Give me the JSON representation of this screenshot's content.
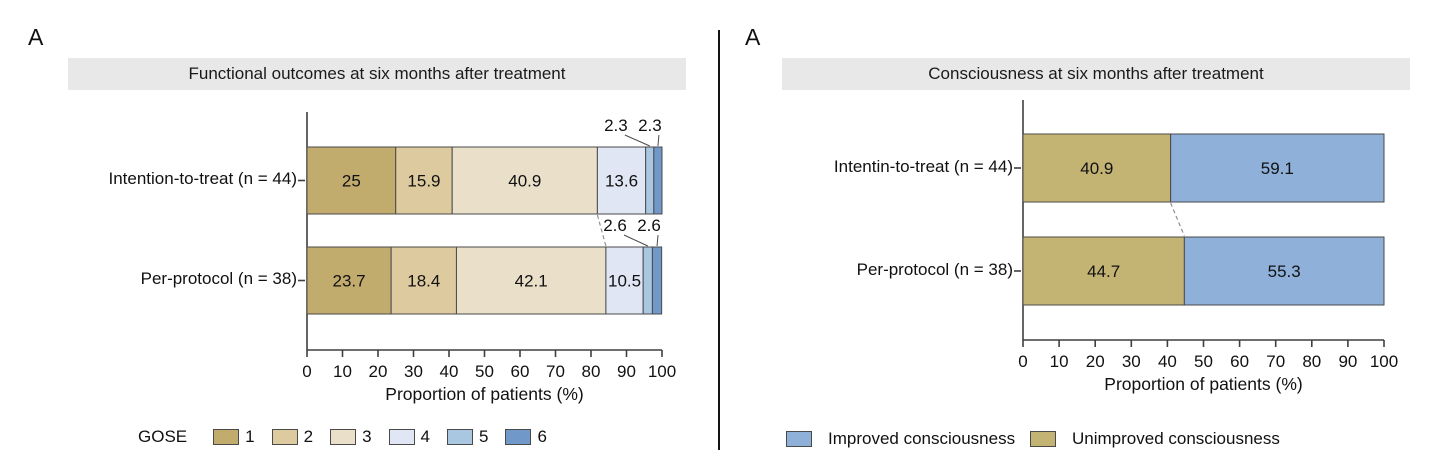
{
  "chart_data": [
    {
      "type": "stacked_bar_horizontal",
      "panel_label": "A",
      "title": "Functional outcomes at six months after treatment",
      "xlabel": "Proportion of patients (%)",
      "xlim": [
        0,
        100
      ],
      "x_ticks": [
        0,
        10,
        20,
        30,
        40,
        50,
        60,
        70,
        80,
        90,
        100
      ],
      "grid": false,
      "categories": [
        "Intention-to-treat (n = 44)",
        "Per-protocol (n = 38)"
      ],
      "series": [
        {
          "name": "GOSE 1",
          "color": "#c2ac6d",
          "values": [
            25,
            23.7
          ]
        },
        {
          "name": "GOSE 2",
          "color": "#ddcb9f",
          "values": [
            15.9,
            18.4
          ]
        },
        {
          "name": "GOSE 3",
          "color": "#eae0c9",
          "values": [
            40.9,
            42.1
          ]
        },
        {
          "name": "GOSE 4",
          "color": "#e0e6f4",
          "values": [
            13.6,
            10.5
          ]
        },
        {
          "name": "GOSE 5",
          "color": "#aac7e2",
          "values": [
            2.3,
            2.6
          ]
        },
        {
          "name": "GOSE 6",
          "color": "#7099c9",
          "values": [
            2.3,
            2.6
          ]
        }
      ],
      "bar_value_labels": [
        [
          "25",
          "15.9",
          "40.9",
          "13.6",
          "2.3",
          "2.3"
        ],
        [
          "23.7",
          "18.4",
          "42.1",
          "10.5",
          "2.6",
          "2.6"
        ]
      ],
      "small_label_threshold": 5,
      "connector_after_series": 3,
      "legend": {
        "title": "GOSE",
        "position": "bottom",
        "items": [
          {
            "label": "1",
            "color": "#c2ac6d"
          },
          {
            "label": "2",
            "color": "#ddcb9f"
          },
          {
            "label": "3",
            "color": "#eae0c9"
          },
          {
            "label": "4",
            "color": "#e0e6f4"
          },
          {
            "label": "5",
            "color": "#aac7e2"
          },
          {
            "label": "6",
            "color": "#7099c9"
          }
        ]
      }
    },
    {
      "type": "stacked_bar_horizontal",
      "panel_label": "A",
      "title": "Consciousness at six months after treatment",
      "xlabel": "Proportion of patients (%)",
      "xlim": [
        0,
        100
      ],
      "x_ticks": [
        0,
        10,
        20,
        30,
        40,
        50,
        60,
        70,
        80,
        90,
        100
      ],
      "grid": false,
      "categories": [
        "Intentin-to-treat (n = 44)",
        "Per-protocol (n = 38)"
      ],
      "series": [
        {
          "name": "Unimproved consciousness",
          "color": "#c4b473",
          "values": [
            40.9,
            44.7
          ]
        },
        {
          "name": "Improved consciousness",
          "color": "#8fb0d8",
          "values": [
            59.1,
            55.3
          ]
        }
      ],
      "bar_value_labels": [
        [
          "40.9",
          "59.1"
        ],
        [
          "44.7",
          "55.3"
        ]
      ],
      "small_label_threshold": 0,
      "connector_after_series": 1,
      "legend": {
        "title": "",
        "position": "bottom",
        "items": [
          {
            "label": "Improved consciousness",
            "color": "#8fb0d8"
          },
          {
            "label": "Unimproved consciousness",
            "color": "#c4b473"
          }
        ]
      }
    }
  ]
}
